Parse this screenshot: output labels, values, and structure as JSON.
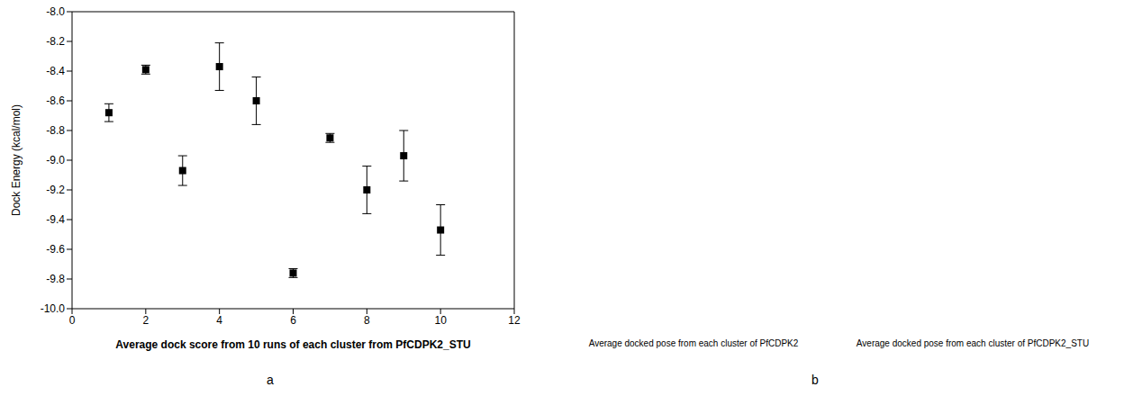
{
  "chart_data": {
    "type": "scatter",
    "x_label": "Average dock score from 10 runs of each cluster from PfCDPK2_STU",
    "y_label": "Dock Energy (kcal/mol)",
    "x": [
      1,
      2,
      3,
      4,
      5,
      6,
      7,
      8,
      9,
      10
    ],
    "values": [
      -8.68,
      -8.39,
      -9.07,
      -8.37,
      -8.6,
      -9.76,
      -8.85,
      -9.2,
      -8.97,
      -9.47
    ],
    "errors": [
      0.06,
      0.03,
      0.1,
      0.16,
      0.16,
      0.03,
      0.03,
      0.16,
      0.17,
      0.17
    ],
    "color": "#000000",
    "marker": "square",
    "xlim": [
      0,
      12
    ],
    "xticks": [
      0,
      2,
      4,
      6,
      8,
      10,
      12
    ],
    "ylim": [
      -10,
      -8
    ],
    "yticks": [
      {
        "value": -10,
        "label": "-10.0"
      },
      -9.8,
      -9.6,
      -9.4,
      -9.2,
      {
        "value": -9,
        "label": "-9.0"
      },
      -8.8,
      -8.6,
      -8.4,
      -8.2,
      {
        "value": -8,
        "label": "-8.0"
      }
    ],
    "grid": false
  },
  "figure": {
    "panel_labels": [
      "a",
      "b"
    ],
    "captions": [
      "Average docked pose from each cluster of PfCDPK2",
      "Average docked pose from each cluster of PfCDPK2_STU"
    ]
  }
}
